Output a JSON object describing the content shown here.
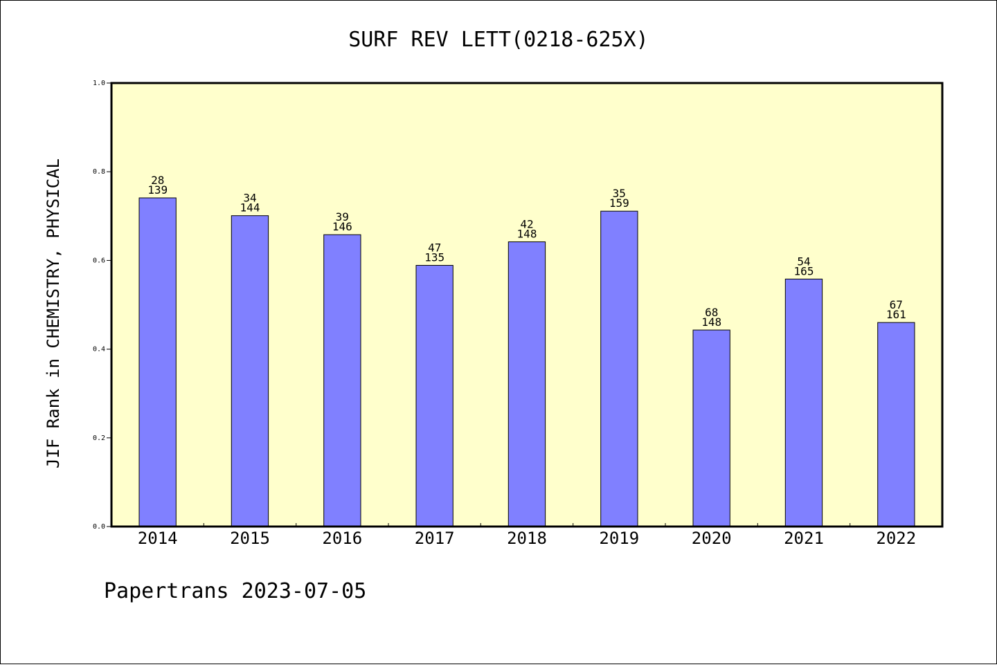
{
  "chart_data": {
    "type": "bar",
    "title": "SURF REV LETT(0218-625X)",
    "xlabel": "",
    "ylabel": "JIF Rank in CHEMISTRY, PHYSICAL",
    "footer": "Papertrans 2023-07-05",
    "ylim": [
      0,
      1.0
    ],
    "yticks": [
      0.0,
      0.2,
      0.4,
      0.6,
      0.8,
      1.0
    ],
    "ytick_labels": [
      "0.0",
      "0.2",
      "0.4",
      "0.6",
      "0.8",
      "1.0"
    ],
    "categories": [
      "2014",
      "2015",
      "2016",
      "2017",
      "2018",
      "2019",
      "2020",
      "2021",
      "2022"
    ],
    "values": [
      0.741,
      0.701,
      0.658,
      0.589,
      0.642,
      0.711,
      0.443,
      0.558,
      0.46
    ],
    "rank": [
      "28",
      "34",
      "39",
      "47",
      "42",
      "35",
      "68",
      "54",
      "67"
    ],
    "total": [
      "139",
      "144",
      "146",
      "135",
      "148",
      "159",
      "148",
      "165",
      "161"
    ],
    "grid": false,
    "legend": "none",
    "colors": {
      "bar": "#8080ff",
      "plot_bg": "#ffffcc",
      "axis": "#000000"
    }
  }
}
